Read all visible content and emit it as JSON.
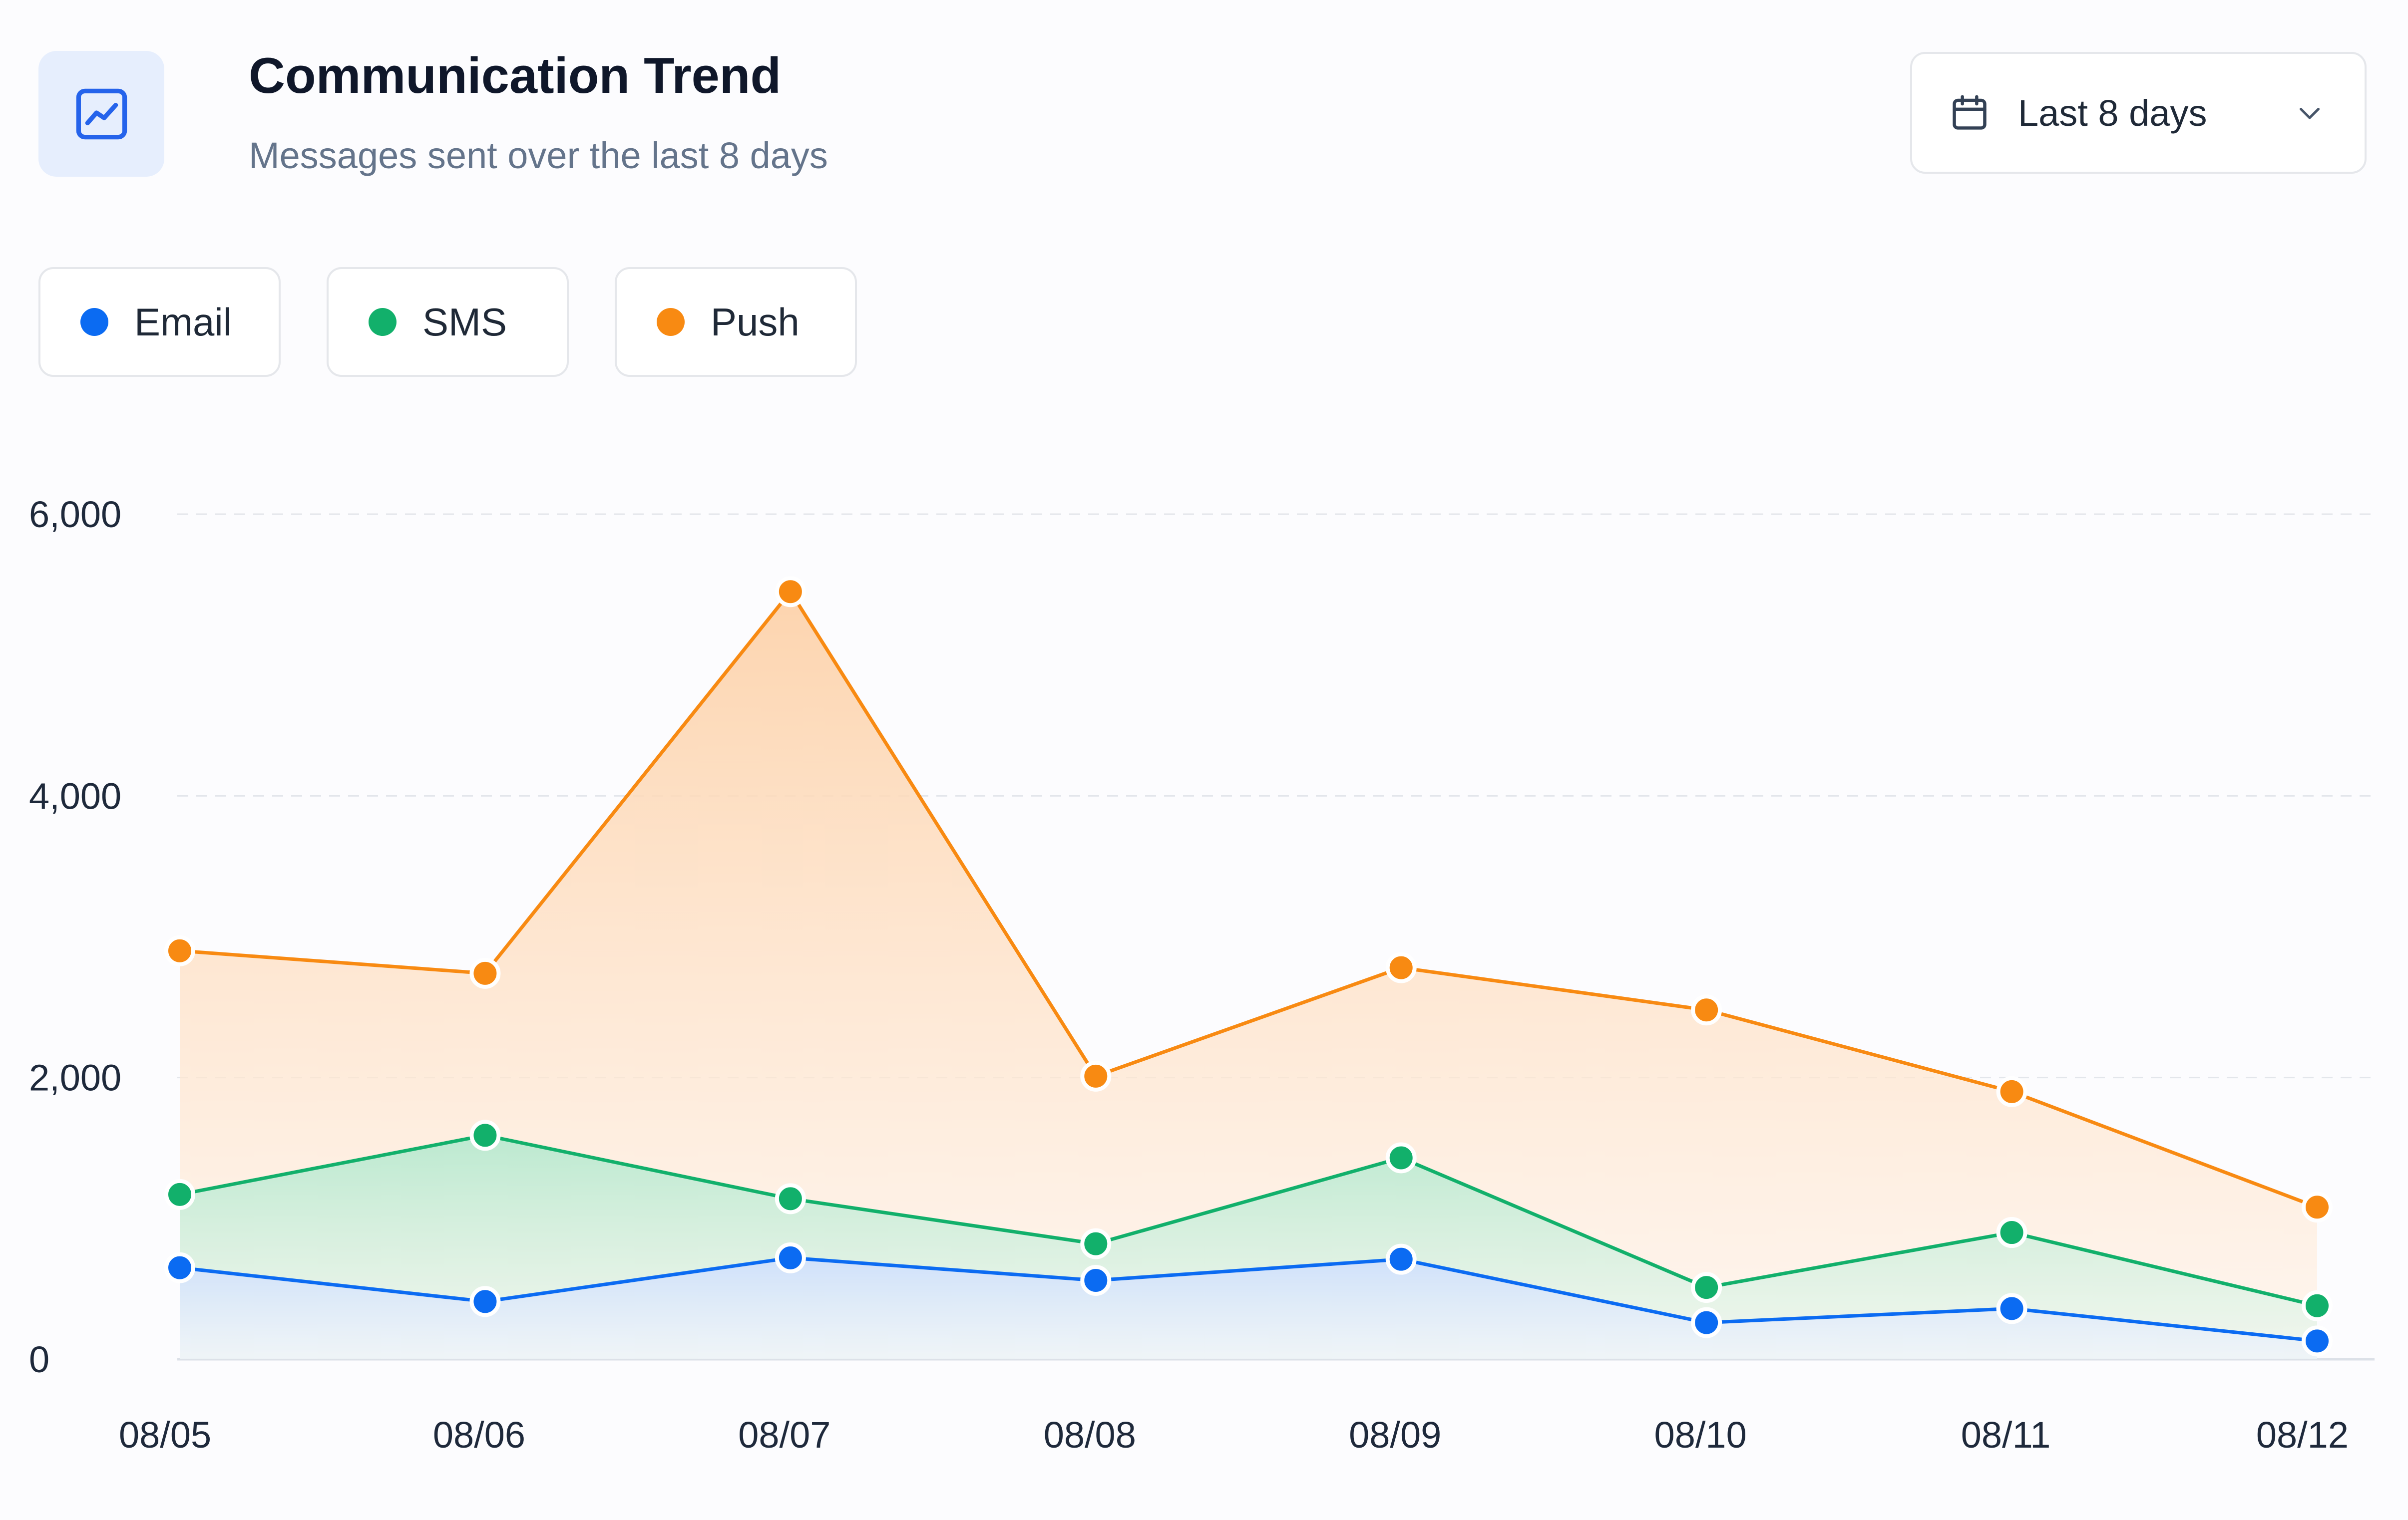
{
  "header": {
    "title": "Communication Trend",
    "subtitle": "Messages sent over the last 8 days",
    "icon": "trend-chart-icon",
    "icon_bg": "#E6EEFD",
    "icon_color": "#2563EB"
  },
  "range_select": {
    "label": "Last 8 days",
    "icon": "calendar-icon",
    "chevron_icon": "chevron-down-icon"
  },
  "legend": [
    {
      "label": "Email",
      "color": "#0B6BF2"
    },
    {
      "label": "SMS",
      "color": "#12B06B"
    },
    {
      "label": "Push",
      "color": "#F88A12"
    }
  ],
  "chart_data": {
    "type": "area",
    "categories": [
      "08/05",
      "08/06",
      "08/07",
      "08/08",
      "08/09",
      "08/10",
      "08/11",
      "08/12"
    ],
    "series": [
      {
        "name": "Push",
        "color": "#F88A12",
        "values": [
          2900,
          2740,
          5450,
          2010,
          2780,
          2480,
          1900,
          1080
        ]
      },
      {
        "name": "SMS",
        "color": "#12B06B",
        "values": [
          1170,
          1590,
          1140,
          820,
          1430,
          510,
          900,
          380
        ]
      },
      {
        "name": "Email",
        "color": "#0B6BF2",
        "values": [
          650,
          410,
          720,
          560,
          710,
          260,
          360,
          130
        ]
      }
    ],
    "y_ticks": [
      0,
      2000,
      4000,
      6000
    ],
    "y_tick_labels": [
      "0",
      "2,000",
      "4,000",
      "6,000"
    ],
    "ylim": [
      0,
      6000
    ],
    "grid": true,
    "legend_position": "top-left"
  }
}
